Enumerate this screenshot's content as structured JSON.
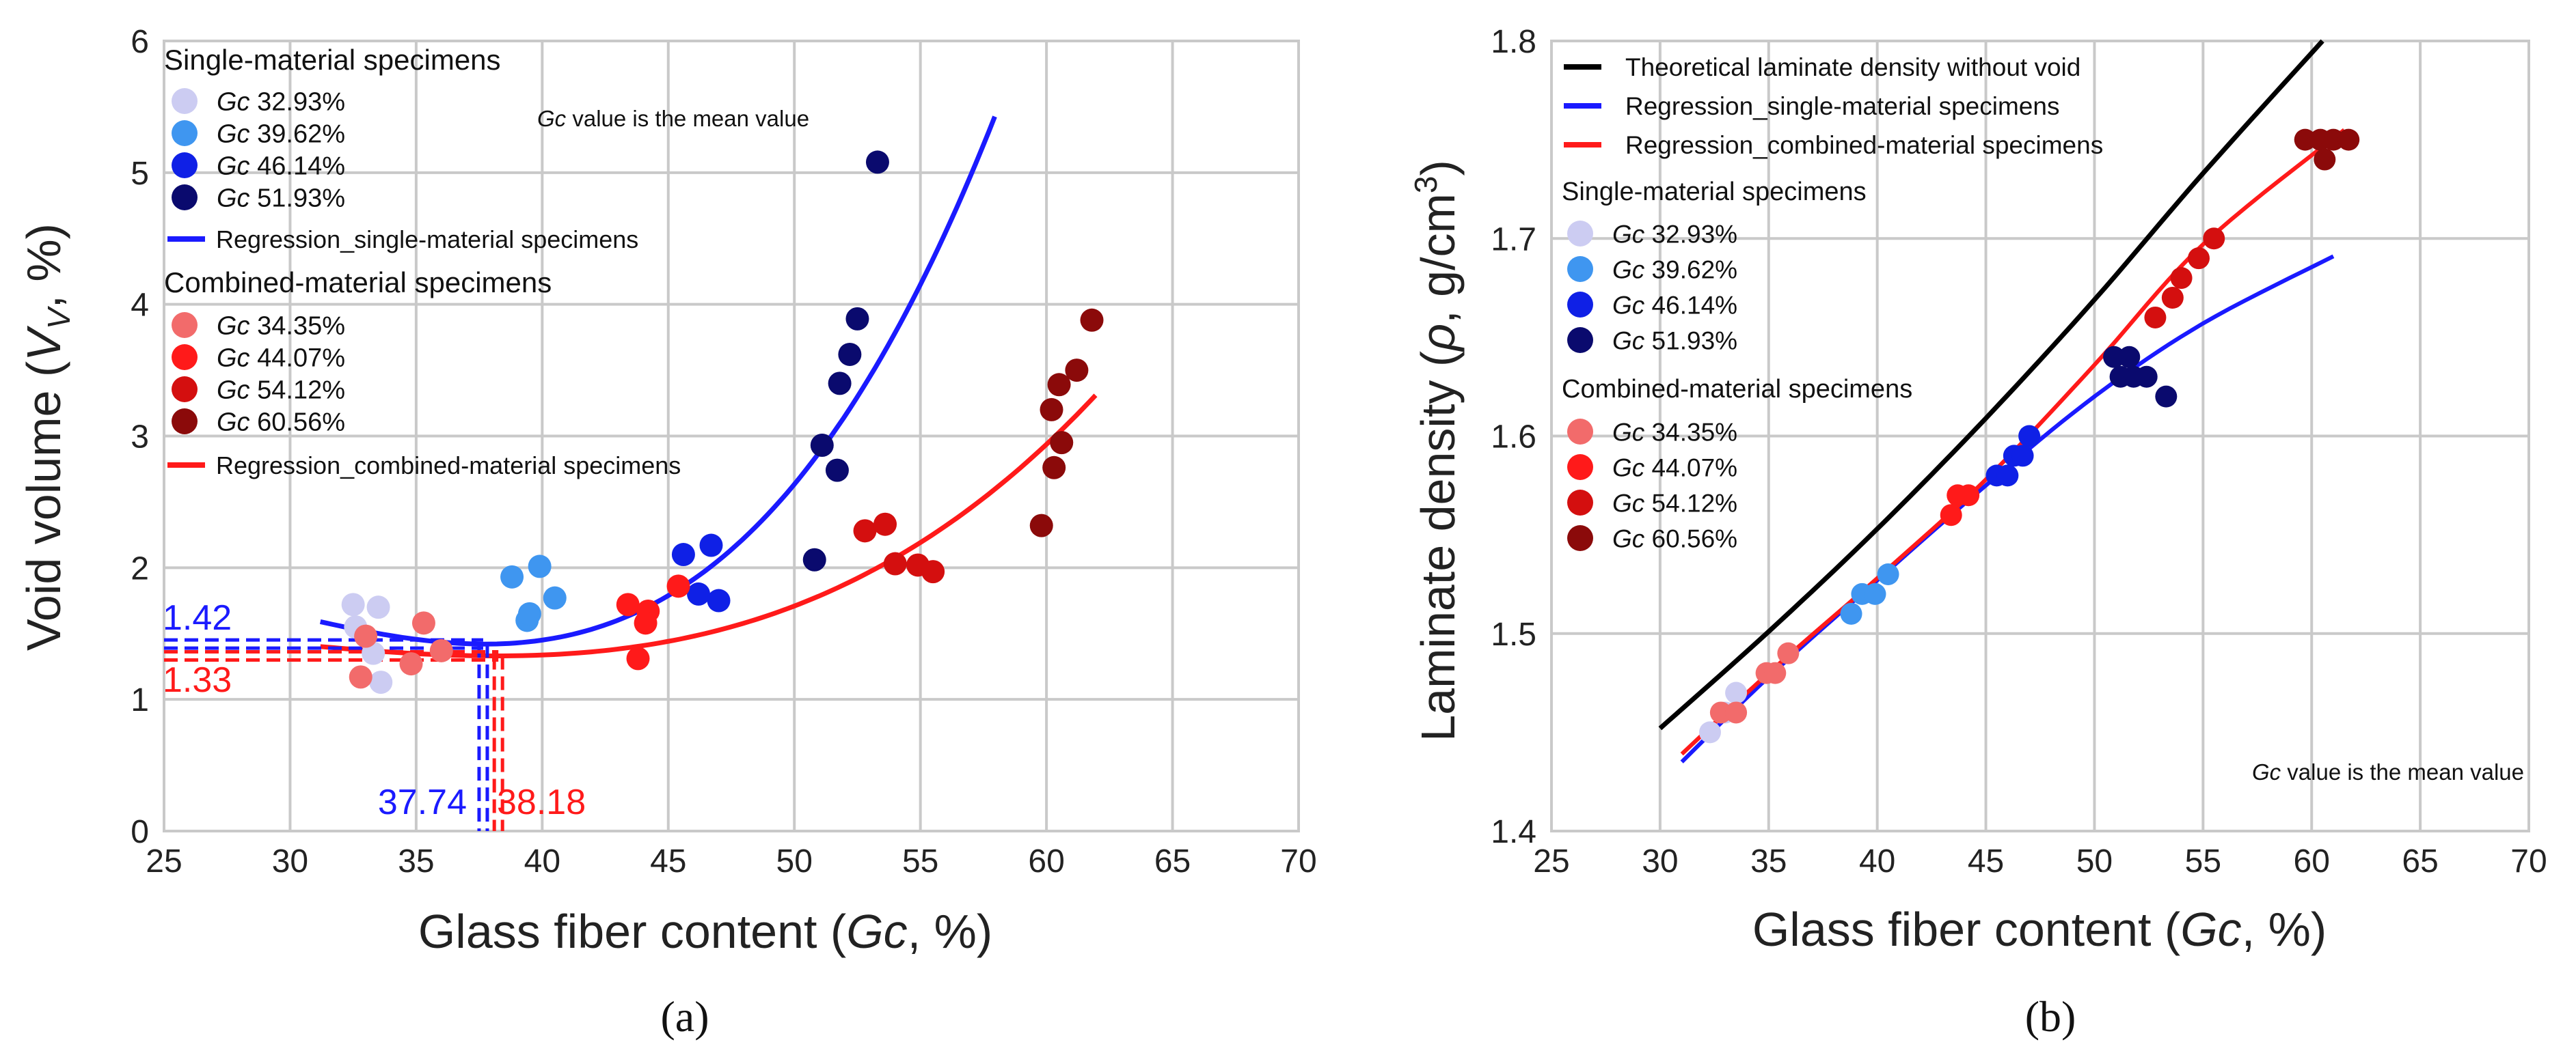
{
  "chart_data": [
    {
      "panel": "(a)",
      "type": "scatter",
      "xlabel_prefix": "Glass fiber content (",
      "xlabel_var": "Gc",
      "xlabel_suffix": ", %)",
      "ylabel_prefix": "Void volume (",
      "ylabel_var": "V",
      "ylabel_sub": "V",
      "ylabel_suffix": ", %)",
      "xlim": [
        25,
        70
      ],
      "ylim": [
        0,
        6
      ],
      "xticks": [
        "25",
        "30",
        "35",
        "40",
        "45",
        "50",
        "55",
        "60",
        "65",
        "70"
      ],
      "yticks": [
        "0",
        "1",
        "2",
        "3",
        "4",
        "5",
        "6"
      ],
      "grid": true,
      "note_var": "Gc",
      "note_text": " value is the mean value",
      "legend_single_title": "Single-material specimens",
      "legend_combined_title": "Combined-material specimens",
      "series": [
        {
          "name": "Gc 32.93%",
          "var": "Gc",
          "label": " 32.93%",
          "color": "#ccccf2",
          "points": [
            [
              32.5,
              1.72
            ],
            [
              33.5,
              1.7
            ],
            [
              32.6,
              1.55
            ],
            [
              33.3,
              1.35
            ],
            [
              33.6,
              1.13
            ]
          ]
        },
        {
          "name": "Gc 39.62%",
          "var": "Gc",
          "label": " 39.62%",
          "color": "#3f96f0",
          "points": [
            [
              38.8,
              1.93
            ],
            [
              39.9,
              2.01
            ],
            [
              40.5,
              1.77
            ],
            [
              39.4,
              1.6
            ],
            [
              39.5,
              1.65
            ]
          ]
        },
        {
          "name": "Gc 46.14%",
          "var": "Gc",
          "label": " 46.14%",
          "color": "#0f20e6",
          "points": [
            [
              45.6,
              2.1
            ],
            [
              46.7,
              2.17
            ],
            [
              46.2,
              1.8
            ],
            [
              47.0,
              1.75
            ]
          ]
        },
        {
          "name": "Gc 51.93%",
          "var": "Gc",
          "label": " 51.93%",
          "color": "#0a0a6e",
          "points": [
            [
              53.3,
              5.08
            ],
            [
              52.5,
              3.89
            ],
            [
              52.2,
              3.62
            ],
            [
              51.8,
              3.4
            ],
            [
              51.1,
              2.93
            ],
            [
              51.7,
              2.74
            ],
            [
              50.8,
              2.06
            ]
          ]
        },
        {
          "name": "Gc 34.35%",
          "var": "Gc",
          "label": " 34.35%",
          "color": "#f26b6b",
          "points": [
            [
              35.3,
              1.58
            ],
            [
              33.0,
              1.48
            ],
            [
              36.0,
              1.37
            ],
            [
              34.8,
              1.27
            ],
            [
              32.8,
              1.17
            ]
          ]
        },
        {
          "name": "Gc 44.07%",
          "var": "Gc",
          "label": " 44.07%",
          "color": "#ff1a1a",
          "points": [
            [
              45.4,
              1.86
            ],
            [
              43.4,
              1.72
            ],
            [
              44.2,
              1.67
            ],
            [
              44.1,
              1.58
            ],
            [
              43.8,
              1.31
            ]
          ]
        },
        {
          "name": "Gc 54.12%",
          "var": "Gc",
          "label": " 54.12%",
          "color": "#d40f0f",
          "points": [
            [
              52.8,
              2.28
            ],
            [
              53.6,
              2.33
            ],
            [
              54.0,
              2.03
            ],
            [
              54.9,
              2.02
            ],
            [
              55.5,
              1.97
            ]
          ]
        },
        {
          "name": "Gc 60.56%",
          "var": "Gc",
          "label": " 60.56%",
          "color": "#8b0a0a",
          "points": [
            [
              61.8,
              3.88
            ],
            [
              61.2,
              3.5
            ],
            [
              60.5,
              3.39
            ],
            [
              60.2,
              3.2
            ],
            [
              60.6,
              2.95
            ],
            [
              60.3,
              2.76
            ],
            [
              59.8,
              2.32
            ]
          ]
        }
      ],
      "regressions": [
        {
          "name": "Regression_single-material specimens",
          "color": "#1a1aff",
          "x_range": [
            31.2,
            58.0
          ],
          "vertex": [
            37.74,
            1.42
          ],
          "end_point": [
            58.0,
            5.45
          ]
        },
        {
          "name": "Regression_combined-material specimens",
          "color": "#ff1a1a",
          "x_range": [
            31.2,
            62.0
          ],
          "vertex": [
            38.18,
            1.33
          ],
          "end_point": [
            62.0,
            3.32
          ]
        }
      ],
      "annotations": {
        "single_min_y": "1.42",
        "combined_min_y": "1.33",
        "single_min_x": "37.74",
        "combined_min_x": "38.18"
      }
    },
    {
      "panel": "(b)",
      "type": "scatter",
      "xlabel_prefix": "Glass fiber content (",
      "xlabel_var": "Gc",
      "xlabel_suffix": ", %)",
      "ylabel_prefix": "Laminate density (",
      "ylabel_var": "ρ",
      "ylabel_mid": ", g/cm",
      "ylabel_sup": "3",
      "ylabel_suffix": ")",
      "xlim": [
        25,
        70
      ],
      "ylim": [
        1.4,
        1.8
      ],
      "xticks": [
        "25",
        "30",
        "35",
        "40",
        "45",
        "50",
        "55",
        "60",
        "65",
        "70"
      ],
      "yticks": [
        "1.4",
        "1.5",
        "1.6",
        "1.7",
        "1.8"
      ],
      "grid": true,
      "note_var": "Gc",
      "note_text": " value is the mean value",
      "legend_single_title": "Single-material specimens",
      "legend_combined_title": "Combined-material specimens",
      "series": [
        {
          "name": "Gc 32.93%",
          "var": "Gc",
          "label": " 32.93%",
          "color": "#ccccf2",
          "points": [
            [
              32.3,
              1.45
            ],
            [
              33.0,
              1.46
            ],
            [
              33.5,
              1.47
            ]
          ]
        },
        {
          "name": "Gc 39.62%",
          "var": "Gc",
          "label": " 39.62%",
          "color": "#3f96f0",
          "points": [
            [
              38.8,
              1.51
            ],
            [
              39.3,
              1.52
            ],
            [
              39.9,
              1.52
            ],
            [
              40.5,
              1.53
            ]
          ]
        },
        {
          "name": "Gc 46.14%",
          "var": "Gc",
          "label": " 46.14%",
          "color": "#0f20e6",
          "points": [
            [
              45.5,
              1.58
            ],
            [
              46.0,
              1.58
            ],
            [
              46.3,
              1.59
            ],
            [
              46.7,
              1.59
            ],
            [
              47.0,
              1.6
            ]
          ]
        },
        {
          "name": "Gc 51.93%",
          "var": "Gc",
          "label": " 51.93%",
          "color": "#0a0a6e",
          "points": [
            [
              50.9,
              1.64
            ],
            [
              51.6,
              1.64
            ],
            [
              51.2,
              1.63
            ],
            [
              52.4,
              1.63
            ],
            [
              53.3,
              1.62
            ],
            [
              51.8,
              1.63
            ]
          ]
        },
        {
          "name": "Gc 34.35%",
          "var": "Gc",
          "label": " 34.35%",
          "color": "#f26b6b",
          "points": [
            [
              32.8,
              1.46
            ],
            [
              33.5,
              1.46
            ],
            [
              34.9,
              1.48
            ],
            [
              35.3,
              1.48
            ],
            [
              35.9,
              1.49
            ]
          ]
        },
        {
          "name": "Gc 44.07%",
          "var": "Gc",
          "label": " 44.07%",
          "color": "#ff1a1a",
          "points": [
            [
              43.4,
              1.56
            ],
            [
              43.7,
              1.57
            ],
            [
              44.2,
              1.57
            ]
          ]
        },
        {
          "name": "Gc 54.12%",
          "var": "Gc",
          "label": " 54.12%",
          "color": "#d40f0f",
          "points": [
            [
              52.8,
              1.66
            ],
            [
              53.6,
              1.67
            ],
            [
              54.0,
              1.68
            ],
            [
              54.8,
              1.69
            ],
            [
              55.5,
              1.7
            ]
          ]
        },
        {
          "name": "Gc 60.56%",
          "var": "Gc",
          "label": " 60.56%",
          "color": "#8b0a0a",
          "points": [
            [
              59.7,
              1.75
            ],
            [
              60.4,
              1.75
            ],
            [
              61.0,
              1.75
            ],
            [
              61.7,
              1.75
            ],
            [
              60.6,
              1.74
            ]
          ]
        }
      ],
      "theory_curve": {
        "name": "Theoretical laminate density without void",
        "color": "#000000",
        "points": [
          [
            30,
            1.452
          ],
          [
            35,
            1.501
          ],
          [
            40,
            1.553
          ],
          [
            45,
            1.609
          ],
          [
            50,
            1.669
          ],
          [
            55,
            1.733
          ],
          [
            60.5,
            1.8
          ]
        ]
      },
      "regressions": [
        {
          "name": "Regression_single-material specimens",
          "color": "#1a1aff",
          "points": [
            [
              31,
              1.435
            ],
            [
              35,
              1.478
            ],
            [
              40,
              1.527
            ],
            [
              45,
              1.575
            ],
            [
              50,
              1.62
            ],
            [
              55,
              1.657
            ],
            [
              61,
              1.691
            ]
          ]
        },
        {
          "name": "Regression_combined-material specimens",
          "color": "#ff1a1a",
          "points": [
            [
              31,
              1.439
            ],
            [
              35,
              1.48
            ],
            [
              40,
              1.528
            ],
            [
              45,
              1.578
            ],
            [
              50,
              1.636
            ],
            [
              55,
              1.697
            ],
            [
              61.5,
              1.755
            ]
          ]
        }
      ]
    }
  ]
}
